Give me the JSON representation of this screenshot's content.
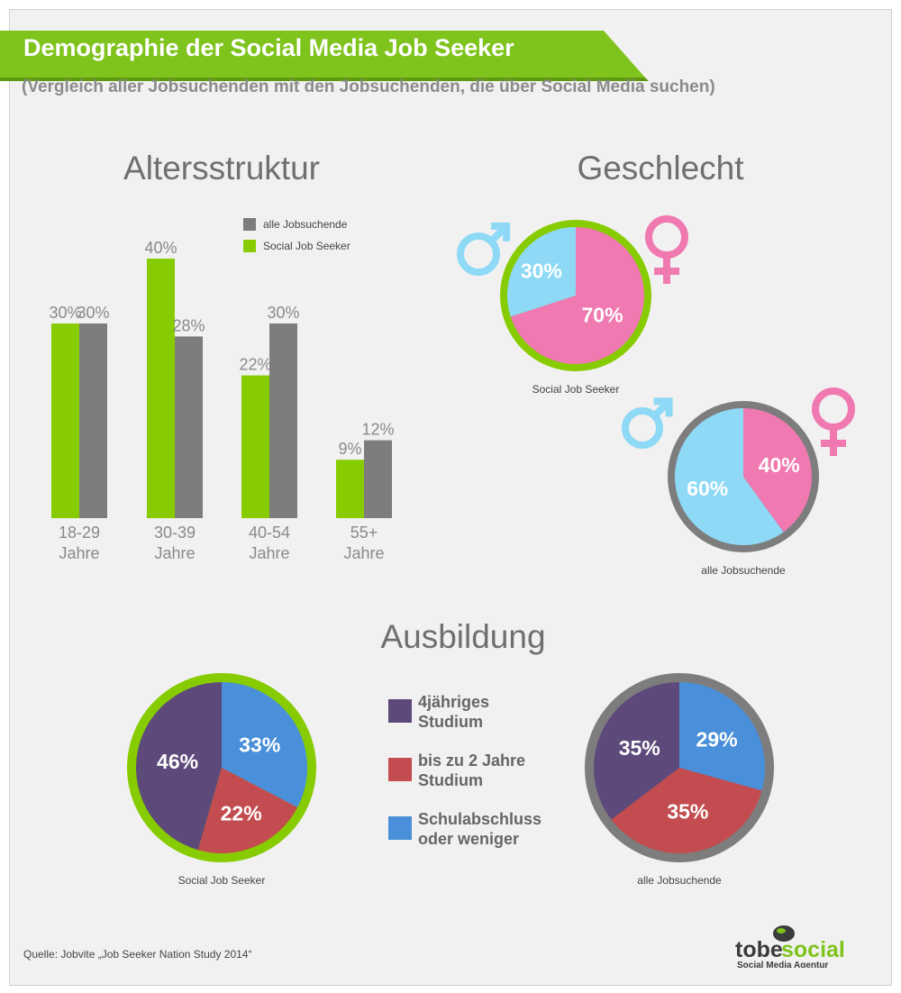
{
  "header": {
    "title": "Demographie der Social Media Job Seeker",
    "subtitle": "(Vergleich aller Jobsuchenden mit den Jobsuchenden, die über Social Media suchen)"
  },
  "sections": {
    "age": "Altersstruktur",
    "gender": "Geschlecht",
    "education": "Ausbildung"
  },
  "source": "Quelle: Jobvite „Job Seeker Nation Study 2014“",
  "logo": {
    "brand_a": "tobe",
    "brand_b": "social",
    "tagline": "Social Media Agentur"
  },
  "colors": {
    "green": "#86cc00",
    "gray": "#7d7d7d",
    "male": "#8dd9f6",
    "female": "#ef79b0",
    "purple": "#5e4a7a",
    "red": "#c24c4f",
    "blue": "#4a8fd9"
  },
  "chart_data": [
    {
      "type": "bar",
      "title": "Altersstruktur",
      "categories": [
        "18-29 Jahre",
        "30-39 Jahre",
        "40-54 Jahre",
        "55+ Jahre"
      ],
      "category_lines": [
        [
          "18-29",
          "Jahre"
        ],
        [
          "30-39",
          "Jahre"
        ],
        [
          "40-54",
          "Jahre"
        ],
        [
          "55+",
          "Jahre"
        ]
      ],
      "series": [
        {
          "name": "Social Job Seeker",
          "values": [
            30,
            40,
            22,
            9
          ],
          "labels": [
            "30%",
            "40%",
            "22%",
            "9%"
          ],
          "color": "#86cc00"
        },
        {
          "name": "alle Jobsuchende",
          "values": [
            30,
            28,
            30,
            12
          ],
          "labels": [
            "30%",
            "28%",
            "30%",
            "12%"
          ],
          "color": "#7d7d7d"
        }
      ],
      "legend": [
        {
          "name": "alle Jobsuchende",
          "color": "#7d7d7d"
        },
        {
          "name": "Social Job Seeker",
          "color": "#86cc00"
        }
      ],
      "legend_position": "top-right",
      "ylim": [
        0,
        40
      ]
    },
    {
      "type": "pie",
      "title": "Geschlecht",
      "name": "Social Job Seeker",
      "ring_color": "#86cc00",
      "slices": [
        {
          "label": "männlich",
          "value": 30,
          "text": "30%",
          "color": "#8dd9f6"
        },
        {
          "label": "weiblich",
          "value": 70,
          "text": "70%",
          "color": "#ef79b0"
        }
      ]
    },
    {
      "type": "pie",
      "title": "Geschlecht",
      "name": "alle Jobsuchende",
      "ring_color": "#7d7d7d",
      "slices": [
        {
          "label": "männlich",
          "value": 60,
          "text": "60%",
          "color": "#8dd9f6"
        },
        {
          "label": "weiblich",
          "value": 40,
          "text": "40%",
          "color": "#ef79b0"
        }
      ]
    },
    {
      "type": "pie",
      "title": "Ausbildung",
      "name": "Social Job Seeker",
      "ring_color": "#86cc00",
      "slices": [
        {
          "label": "Schulabschluss oder weniger",
          "value": 33,
          "text": "33%",
          "color": "#4a8fd9"
        },
        {
          "label": "bis zu 2 Jahre Studium",
          "value": 22,
          "text": "22%",
          "color": "#c24c4f"
        },
        {
          "label": "4jähriges Studium",
          "value": 46,
          "text": "46%",
          "color": "#5e4a7a"
        }
      ]
    },
    {
      "type": "pie",
      "title": "Ausbildung",
      "name": "alle Jobsuchende",
      "ring_color": "#7d7d7d",
      "slices": [
        {
          "label": "Schulabschluss oder weniger",
          "value": 29,
          "text": "29%",
          "color": "#4a8fd9"
        },
        {
          "label": "bis zu 2 Jahre Studium",
          "value": 35,
          "text": "35%",
          "color": "#c24c4f"
        },
        {
          "label": "4jähriges Studium",
          "value": 35,
          "text": "35%",
          "color": "#5e4a7a"
        }
      ]
    }
  ],
  "education_legend": [
    {
      "label": "4jähriges Studium",
      "lines": [
        "4jähriges",
        "Studium"
      ],
      "color": "#5e4a7a"
    },
    {
      "label": "bis zu 2 Jahre Studium",
      "lines": [
        "bis zu 2 Jahre",
        "Studium"
      ],
      "color": "#c24c4f"
    },
    {
      "label": "Schulabschluss oder weniger",
      "lines": [
        "Schulabschluss",
        "oder weniger"
      ],
      "color": "#4a8fd9"
    }
  ]
}
